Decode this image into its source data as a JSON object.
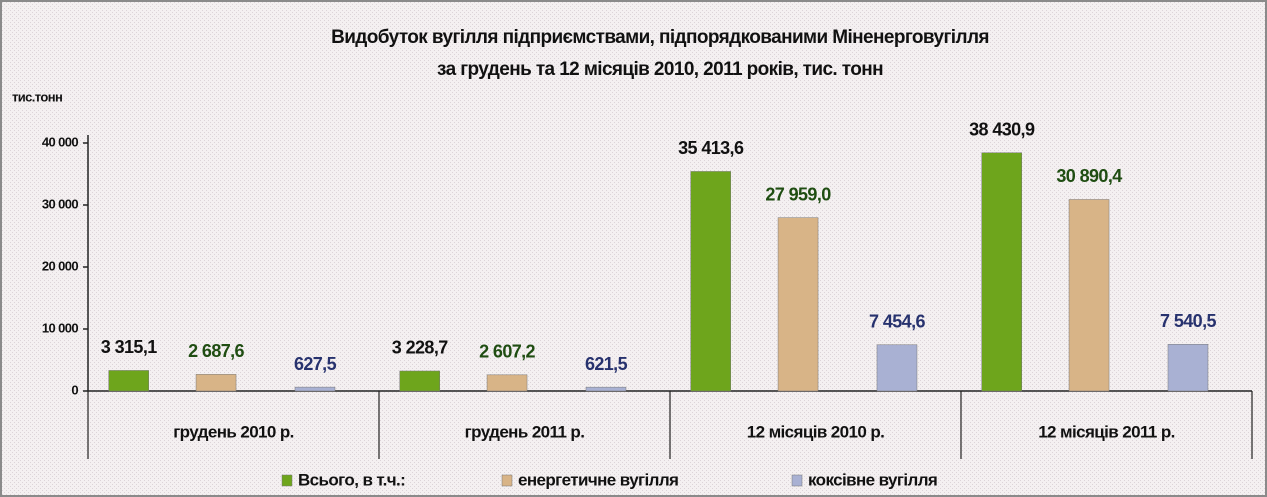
{
  "chart_data": {
    "type": "bar",
    "title": "Видобуток вугілля підприємствами, підпорядкованими Міненерговугілля",
    "subtitle": "за грудень та 12 місяців 2010, 2011 років, тис. тонн",
    "y_label": "тис.тонн",
    "categories": [
      "грудень 2010 р.",
      "грудень 2011 р.",
      "12 місяців 2010 р.",
      "12 місяців 2011 р."
    ],
    "series": [
      {
        "name": "Всього, в т.ч.:",
        "color": "#6ea51c",
        "label_color": "#111111",
        "values": [
          3315.1,
          3228.7,
          35413.6,
          38430.9
        ],
        "value_labels": [
          "3 315,1",
          "3 228,7",
          "35 413,6",
          "38 430,9"
        ]
      },
      {
        "name": "енергетичне вугілля",
        "color": "#d8b487",
        "label_color": "#1f4d12",
        "values": [
          2687.6,
          2607.2,
          27959.0,
          30890.4
        ],
        "value_labels": [
          "2 687,6",
          "2 607,2",
          "27 959,0",
          "30 890,4"
        ]
      },
      {
        "name": "коксівне вугілля",
        "color": "#a9b1d3",
        "label_color": "#27326e",
        "values": [
          627.5,
          621.5,
          7454.6,
          7540.5
        ],
        "value_labels": [
          "627,5",
          "621,5",
          "7 454,6",
          "7 540,5"
        ]
      }
    ],
    "ylim": [
      0,
      40000
    ],
    "yticks": [
      0,
      {
        "value": 10000,
        "label": "10 000"
      },
      {
        "value": 20000,
        "label": "20 000"
      },
      {
        "value": 30000,
        "label": "30 000"
      },
      {
        "value": 40000,
        "label": "40 000"
      }
    ],
    "grid": false,
    "legend": "bottom"
  }
}
